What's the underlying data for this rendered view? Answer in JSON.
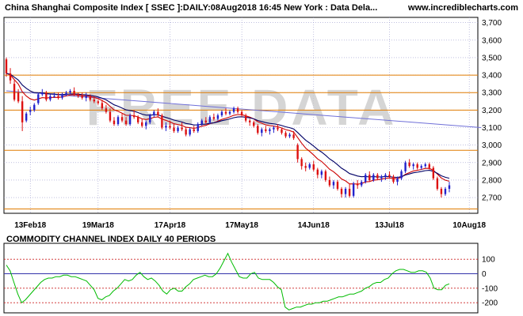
{
  "header": {
    "title": "China Shanghai Composite Index [ SSEC ]:DAILY:08Aug2018 16:45 New York : Data Dela...",
    "site": "www.incrediblecharts.com"
  },
  "watermark": "FREE DATA",
  "colors": {
    "frame": "#000000",
    "grid": "#9999cc",
    "hline": "#e07b00",
    "up": "#2222cc",
    "down": "#dd1111",
    "ema_fast": "#cc0000",
    "ema_slow": "#000066",
    "trend": "#6f6fd8",
    "cci": "#00bb00",
    "cci_ref": "#3333aa",
    "cci_band": "#cc2222"
  },
  "chart_data": [
    {
      "type": "candlestick",
      "title": "China Shanghai Composite Index [ SSEC ]:DAILY:08Aug2018 16:45 New York : Data Dela...",
      "x_tick_labels": [
        "13Feb18",
        "19Mar18",
        "17Apr18",
        "17May18",
        "14Jun18",
        "13Jul18",
        "10Aug18"
      ],
      "y_tick_labels": [
        "2,700",
        "2,800",
        "2,900",
        "3,000",
        "3,100",
        "3,200",
        "3,300",
        "3,400",
        "3,500",
        "3,600",
        "3,700"
      ],
      "ylim": [
        2610,
        3730
      ],
      "horizontal_lines": [
        3400,
        3300,
        3200,
        2970,
        2635
      ],
      "trendline": [
        [
          0,
          3310
        ],
        [
          119,
          3100
        ]
      ],
      "series": [
        {
          "values": [
            [
              3490,
              3500,
              3390,
              3410
            ],
            [
              3410,
              3440,
              3350,
              3370
            ],
            [
              3350,
              3370,
              3250,
              3260
            ],
            [
              3300,
              3320,
              3240,
              3250
            ],
            [
              3250,
              3280,
              3080,
              3130
            ],
            [
              3140,
              3190,
              3130,
              3180
            ],
            [
              3190,
              3220,
              3170,
              3200
            ],
            [
              3200,
              3240,
              3190,
              3230
            ],
            [
              3240,
              3300,
              3230,
              3290
            ],
            [
              3290,
              3320,
              3280,
              3300
            ],
            [
              3300,
              3310,
              3250,
              3260
            ],
            [
              3260,
              3290,
              3250,
              3280
            ],
            [
              3280,
              3300,
              3270,
              3280
            ],
            [
              3280,
              3300,
              3260,
              3270
            ],
            [
              3270,
              3300,
              3260,
              3290
            ],
            [
              3290,
              3310,
              3280,
              3300
            ],
            [
              3300,
              3320,
              3290,
              3310
            ],
            [
              3310,
              3330,
              3280,
              3290
            ],
            [
              3290,
              3300,
              3270,
              3280
            ],
            [
              3280,
              3300,
              3260,
              3270
            ],
            [
              3270,
              3300,
              3250,
              3280
            ],
            [
              3280,
              3290,
              3250,
              3260
            ],
            [
              3260,
              3280,
              3240,
              3250
            ],
            [
              3250,
              3260,
              3230,
              3240
            ],
            [
              3240,
              3260,
              3200,
              3210
            ],
            [
              3210,
              3230,
              3180,
              3190
            ],
            [
              3190,
              3210,
              3130,
              3140
            ],
            [
              3140,
              3160,
              3110,
              3120
            ],
            [
              3120,
              3170,
              3110,
              3160
            ],
            [
              3160,
              3180,
              3130,
              3140
            ],
            [
              3140,
              3160,
              3110,
              3120
            ],
            [
              3120,
              3180,
              3110,
              3170
            ],
            [
              3170,
              3200,
              3150,
              3160
            ],
            [
              3160,
              3170,
              3120,
              3130
            ],
            [
              3130,
              3150,
              3100,
              3110
            ],
            [
              3110,
              3140,
              3090,
              3130
            ],
            [
              3130,
              3180,
              3120,
              3170
            ],
            [
              3170,
              3200,
              3160,
              3190
            ],
            [
              3190,
              3210,
              3160,
              3170
            ],
            [
              3170,
              3180,
              3090,
              3100
            ],
            [
              3100,
              3130,
              3080,
              3110
            ],
            [
              3110,
              3140,
              3090,
              3100
            ],
            [
              3100,
              3120,
              3070,
              3080
            ],
            [
              3080,
              3110,
              3070,
              3100
            ],
            [
              3100,
              3130,
              3080,
              3090
            ],
            [
              3090,
              3100,
              3050,
              3060
            ],
            [
              3060,
              3100,
              3050,
              3090
            ],
            [
              3090,
              3110,
              3070,
              3080
            ],
            [
              3080,
              3130,
              3070,
              3120
            ],
            [
              3120,
              3150,
              3110,
              3140
            ],
            [
              3140,
              3160,
              3120,
              3130
            ],
            [
              3130,
              3170,
              3120,
              3160
            ],
            [
              3160,
              3180,
              3140,
              3150
            ],
            [
              3150,
              3180,
              3140,
              3170
            ],
            [
              3170,
              3200,
              3160,
              3190
            ],
            [
              3190,
              3210,
              3170,
              3180
            ],
            [
              3180,
              3200,
              3170,
              3190
            ],
            [
              3190,
              3220,
              3180,
              3210
            ],
            [
              3210,
              3220,
              3180,
              3190
            ],
            [
              3190,
              3200,
              3160,
              3170
            ],
            [
              3170,
              3180,
              3130,
              3140
            ],
            [
              3140,
              3150,
              3110,
              3130
            ],
            [
              3130,
              3140,
              3100,
              3110
            ],
            [
              3110,
              3120,
              3060,
              3070
            ],
            [
              3070,
              3100,
              3050,
              3090
            ],
            [
              3090,
              3110,
              3070,
              3080
            ],
            [
              3080,
              3100,
              3060,
              3090
            ],
            [
              3090,
              3110,
              3070,
              3100
            ],
            [
              3100,
              3120,
              3080,
              3090
            ],
            [
              3090,
              3100,
              3060,
              3070
            ],
            [
              3070,
              3080,
              3040,
              3050
            ],
            [
              3050,
              3070,
              3040,
              3060
            ],
            [
              3060,
              3080,
              3030,
              3040
            ],
            [
              3000,
              3010,
              2900,
              2920
            ],
            [
              2920,
              2930,
              2860,
              2880
            ],
            [
              2880,
              2900,
              2850,
              2870
            ],
            [
              2870,
              2900,
              2860,
              2890
            ],
            [
              2890,
              2910,
              2850,
              2860
            ],
            [
              2860,
              2870,
              2810,
              2830
            ],
            [
              2830,
              2860,
              2810,
              2850
            ],
            [
              2850,
              2860,
              2790,
              2800
            ],
            [
              2800,
              2820,
              2760,
              2770
            ],
            [
              2770,
              2800,
              2750,
              2790
            ],
            [
              2790,
              2800,
              2740,
              2750
            ],
            [
              2750,
              2760,
              2700,
              2720
            ],
            [
              2720,
              2760,
              2700,
              2750
            ],
            [
              2750,
              2780,
              2700,
              2710
            ],
            [
              2710,
              2790,
              2700,
              2780
            ],
            [
              2780,
              2800,
              2750,
              2770
            ],
            [
              2770,
              2800,
              2760,
              2790
            ],
            [
              2790,
              2840,
              2780,
              2830
            ],
            [
              2830,
              2850,
              2790,
              2800
            ],
            [
              2800,
              2840,
              2790,
              2830
            ],
            [
              2830,
              2840,
              2800,
              2810
            ],
            [
              2810,
              2830,
              2790,
              2820
            ],
            [
              2820,
              2840,
              2800,
              2830
            ],
            [
              2830,
              2850,
              2810,
              2820
            ],
            [
              2820,
              2830,
              2780,
              2790
            ],
            [
              2790,
              2820,
              2770,
              2810
            ],
            [
              2810,
              2860,
              2800,
              2850
            ],
            [
              2850,
              2910,
              2840,
              2900
            ],
            [
              2900,
              2920,
              2870,
              2880
            ],
            [
              2880,
              2900,
              2860,
              2890
            ],
            [
              2890,
              2900,
              2860,
              2870
            ],
            [
              2870,
              2890,
              2860,
              2880
            ],
            [
              2880,
              2900,
              2870,
              2890
            ],
            [
              2890,
              2900,
              2860,
              2870
            ],
            [
              2870,
              2880,
              2800,
              2810
            ],
            [
              2810,
              2820,
              2740,
              2750
            ],
            [
              2750,
              2760,
              2700,
              2720
            ],
            [
              2720,
              2760,
              2710,
              2750
            ],
            [
              2750,
              2790,
              2730,
              2770
            ]
          ]
        }
      ]
    },
    {
      "type": "line",
      "title": "COMMODITY CHANNEL INDEX DAILY 40 PERIODS",
      "y_tick_labels": [
        "100",
        "0",
        "-100",
        "-200"
      ],
      "ylim": [
        -270,
        210
      ],
      "reference_lines": [
        0
      ],
      "band_lines": [
        100,
        -100,
        -200
      ],
      "series": [
        {
          "values": [
            60,
            20,
            -60,
            -140,
            -200,
            -180,
            -150,
            -120,
            -90,
            -60,
            -40,
            -30,
            -30,
            -20,
            -20,
            -10,
            -10,
            -20,
            -20,
            -30,
            -40,
            -50,
            -80,
            -110,
            -170,
            -180,
            -160,
            -150,
            -120,
            -100,
            -70,
            -40,
            -50,
            -40,
            -10,
            10,
            -20,
            -40,
            -30,
            -50,
            -80,
            -120,
            -140,
            -110,
            -100,
            -120,
            -120,
            -90,
            -70,
            -40,
            -30,
            -20,
            -10,
            -20,
            -20,
            0,
            40,
            90,
            140,
            80,
            30,
            -20,
            -30,
            -30,
            0,
            10,
            -30,
            -40,
            -40,
            -40,
            -60,
            -90,
            -110,
            -230,
            -250,
            -240,
            -230,
            -230,
            -220,
            -210,
            -210,
            -200,
            -200,
            -190,
            -190,
            -180,
            -170,
            -160,
            -160,
            -150,
            -140,
            -140,
            -130,
            -120,
            -100,
            -90,
            -70,
            -60,
            -60,
            -40,
            -30,
            0,
            20,
            30,
            30,
            20,
            10,
            10,
            20,
            20,
            10,
            -30,
            -100,
            -110,
            -110,
            -80,
            -70
          ]
        }
      ]
    }
  ]
}
